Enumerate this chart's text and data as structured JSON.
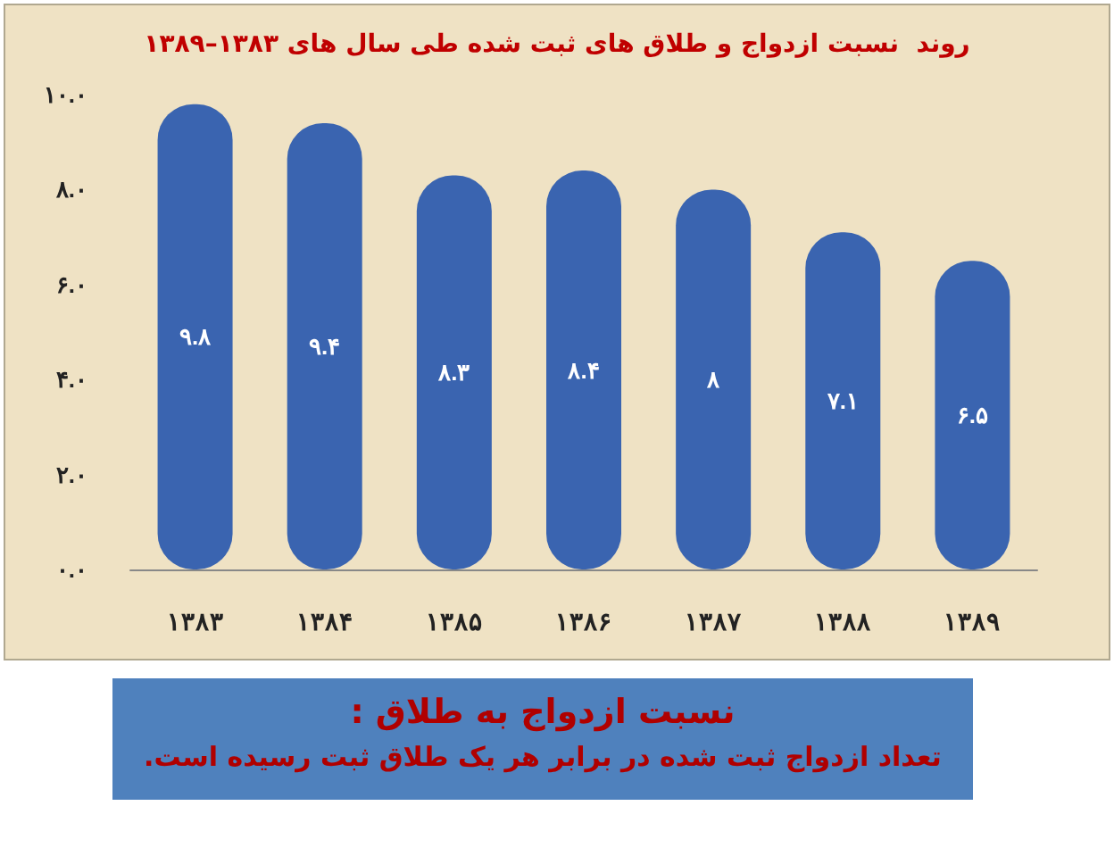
{
  "chart_data": {
    "type": "bar",
    "title": "روند  نسبت ازدواج و طلاق های ثبت شده طی سال های ۱۳۸۳–۱۳۸۹",
    "categories": [
      "۱۳۸۳",
      "۱۳۸۴",
      "۱۳۸۵",
      "۱۳۸۶",
      "۱۳۸۷",
      "۱۳۸۸",
      "۱۳۸۹"
    ],
    "values": [
      9.8,
      9.4,
      8.3,
      8.4,
      8,
      7.1,
      6.5
    ],
    "value_labels": [
      "۹.۸",
      "۹.۴",
      "۸.۳",
      "۸.۴",
      "۸",
      "۷.۱",
      "۶.۵"
    ],
    "color": "#3a64b0",
    "ylim": [
      0,
      10
    ],
    "yticks": [
      {
        "value": 0,
        "label": "۰.۰"
      },
      {
        "value": 2,
        "label": "۲.۰"
      },
      {
        "value": 4,
        "label": "۴.۰"
      },
      {
        "value": 6,
        "label": "۶.۰"
      },
      {
        "value": 8,
        "label": "۸.۰"
      },
      {
        "value": 10,
        "label": "۱۰.۰"
      }
    ],
    "grid": false,
    "annotations": [
      "نسبت ازدواج به طلاق :",
      "تعداد ازدواج ثبت شده در برابر هر یک طلاق ثبت رسیده است."
    ]
  }
}
